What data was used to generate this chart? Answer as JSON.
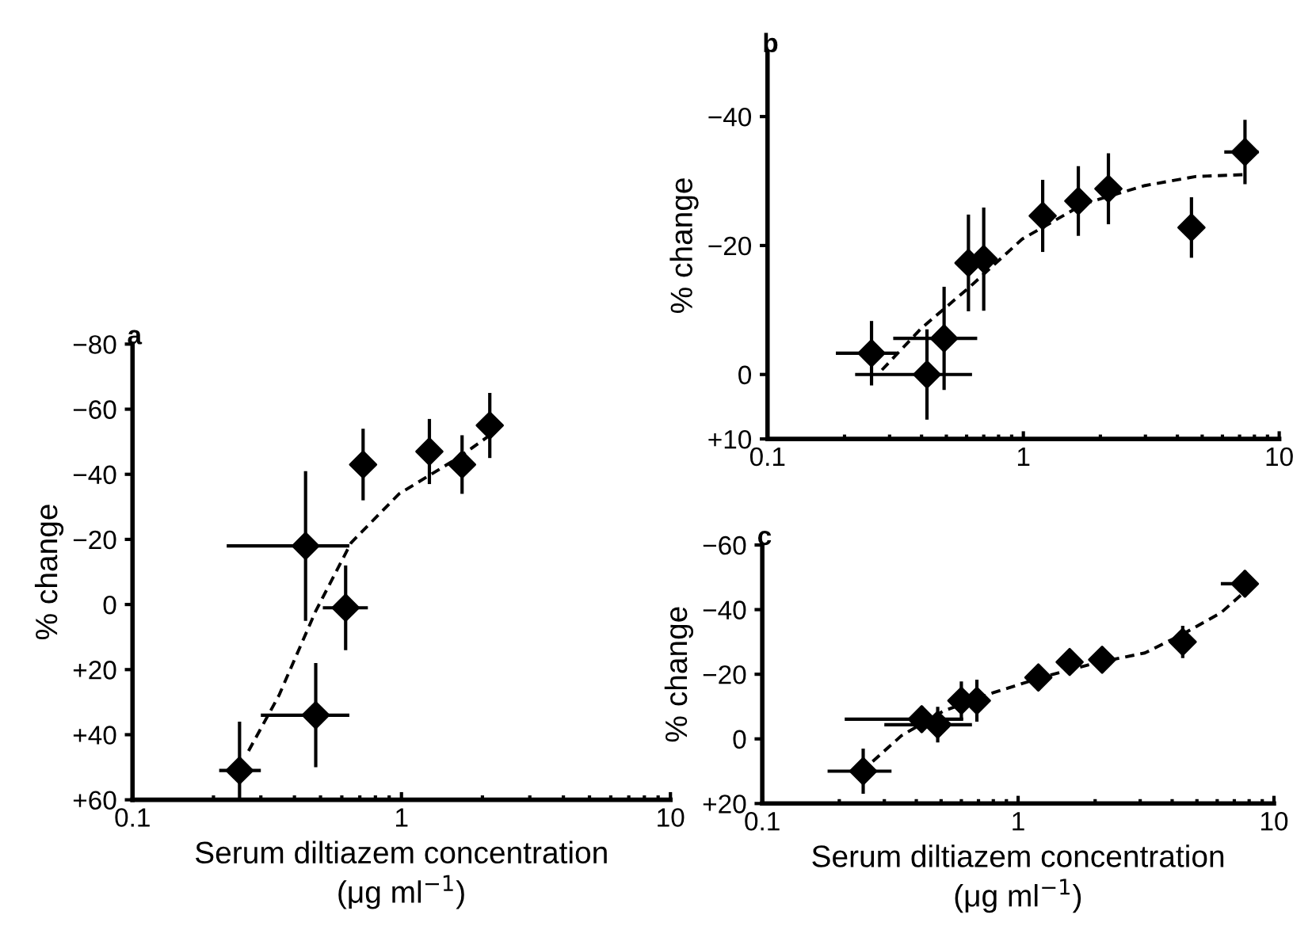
{
  "chart_data": [
    {
      "type": "scatter",
      "title": "a",
      "xlabel": "Serum diltiazem concentration\n(μg ml$^{−1}$)",
      "ylabel": "% change",
      "log": "x",
      "marker": "diamond",
      "xlim": [
        0.1,
        10
      ],
      "xticks": [
        0.1,
        1,
        10
      ],
      "ylim": [
        60,
        -80
      ],
      "yticks": [
        {
          "value": -80,
          "label": "−80"
        },
        {
          "value": -60,
          "label": "−60"
        },
        {
          "value": -40,
          "label": "−40"
        },
        {
          "value": -20,
          "label": "−20"
        },
        0,
        {
          "value": 20,
          "label": "+20"
        },
        {
          "value": 40,
          "label": "+40"
        },
        {
          "value": 60,
          "label": "+60"
        }
      ],
      "series": [
        {
          "color": "#000000",
          "x": [
            0.25,
            0.44,
            0.48,
            0.62,
            0.72,
            1.27,
            1.68,
            2.13
          ],
          "values": [
            51,
            -18,
            34,
            1,
            -43,
            -47,
            -43,
            -55
          ],
          "errors": [
            15,
            23,
            16,
            13,
            11,
            10,
            9,
            10
          ],
          "xerrors": [
            [
              0.21,
              0.3
            ],
            [
              0.224,
              0.64
            ],
            [
              0.3,
              0.64
            ],
            [
              0.51,
              0.75
            ],
            null,
            null,
            null,
            null
          ]
        },
        {
          "type": "line",
          "line_style": "dashed",
          "marker": "none",
          "color": "#000000",
          "x": [
            0.27,
            0.35,
            0.48,
            0.65,
            0.98,
            1.62,
            2.13
          ],
          "values": [
            45,
            28,
            2,
            -19,
            -34,
            -45,
            -52
          ]
        }
      ]
    },
    {
      "type": "scatter",
      "title": "b",
      "ylabel": "% change",
      "log": "x",
      "marker": "diamond",
      "xlim": [
        0.1,
        10
      ],
      "xticks": [
        0.1,
        1,
        10
      ],
      "ylim": [
        10,
        -50
      ],
      "yticks": [
        {
          "value": -40,
          "label": "−40"
        },
        {
          "value": -20,
          "label": "−20"
        },
        0,
        {
          "value": 10,
          "label": "+10"
        }
      ],
      "series": [
        {
          "color": "#000000",
          "x": [
            0.255,
            0.42,
            0.49,
            0.61,
            0.7,
            1.19,
            1.64,
            2.15,
            4.54,
            7.35
          ],
          "values": [
            -3.3,
            0,
            -5.6,
            -17.3,
            -17.9,
            -24.6,
            -26.9,
            -28.8,
            -22.8,
            -34.5
          ],
          "errors": [
            5,
            7,
            8,
            7.5,
            8,
            5.6,
            5.4,
            5.5,
            4.7,
            5
          ],
          "xerrors": [
            [
              0.185,
              0.32
            ],
            [
              0.22,
              0.63
            ],
            [
              0.31,
              0.66
            ],
            null,
            null,
            null,
            null,
            null,
            null,
            [
              6.1,
              8.3
            ]
          ]
        },
        {
          "type": "line",
          "line_style": "dashed",
          "marker": "none",
          "color": "#000000",
          "x": [
            0.28,
            0.4,
            0.61,
            0.99,
            1.73,
            2.99,
            4.71,
            7.35
          ],
          "values": [
            -0.7,
            -7.2,
            -13.4,
            -21,
            -26.5,
            -29.3,
            -30.7,
            -31
          ]
        }
      ]
    },
    {
      "type": "scatter",
      "title": "c",
      "xlabel": "Serum diltiazem concentration\n(μg ml$^{−1}$)",
      "ylabel": "% change",
      "log": "x",
      "marker": "diamond",
      "xlim": [
        0.1,
        10
      ],
      "xticks": [
        0.1,
        1,
        10
      ],
      "ylim": [
        20,
        -60
      ],
      "yticks": [
        {
          "value": -60,
          "label": "−60"
        },
        {
          "value": -40,
          "label": "−40"
        },
        {
          "value": -20,
          "label": "−20"
        },
        0,
        {
          "value": 20,
          "label": "+20"
        }
      ],
      "series": [
        {
          "color": "#000000",
          "x": [
            0.248,
            0.42,
            0.485,
            0.6,
            0.69,
            1.2,
            1.59,
            2.13,
            4.4,
            7.7
          ],
          "values": [
            10,
            -6.1,
            -4.4,
            -11.8,
            -11.8,
            -19,
            -23.8,
            -24.5,
            -30,
            -48
          ],
          "errors": [
            7,
            4,
            5.5,
            6,
            6.5,
            4,
            3,
            4,
            5,
            4
          ],
          "xerrors": [
            [
              0.18,
              0.32
            ],
            [
              0.21,
              0.61
            ],
            [
              0.3,
              0.66
            ],
            null,
            null,
            null,
            null,
            null,
            null,
            [
              6.2,
              8.4
            ]
          ]
        },
        {
          "type": "line",
          "line_style": "dashed",
          "marker": "none",
          "color": "#000000",
          "x": [
            0.27,
            0.35,
            0.51,
            0.8,
            1.26,
            1.99,
            3.13,
            4.4,
            6.2,
            7.7
          ],
          "values": [
            7,
            -1,
            -8.6,
            -14.3,
            -19.2,
            -23.4,
            -26.6,
            -32.4,
            -39,
            -45.6
          ]
        }
      ]
    }
  ]
}
